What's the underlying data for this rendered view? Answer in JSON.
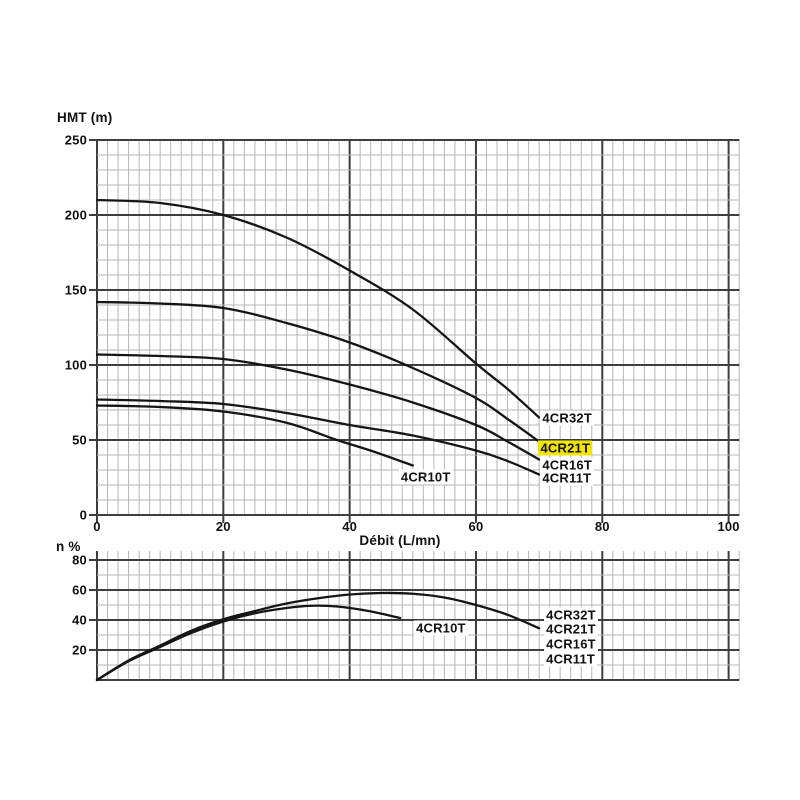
{
  "page": {
    "background": "#ffffff"
  },
  "colors": {
    "grid_minor": "#b7b7b7",
    "grid_major": "#3e3e3e",
    "curve": "#151515",
    "text": "#111111",
    "highlight": "#f2e600",
    "label_background": "#ffffff"
  },
  "chart_data": [
    {
      "id": "head-flow-chart",
      "type": "line",
      "title": "",
      "xlabel": "Débit (L/mn)",
      "ylabel": "HMT (m)",
      "xlim": [
        0,
        100
      ],
      "ylim": [
        0,
        250
      ],
      "x_ticks": [
        0,
        20,
        40,
        60,
        80,
        100
      ],
      "y_ticks": [
        0,
        50,
        100,
        150,
        200,
        250
      ],
      "grid": "minor+major",
      "legend_position": "inline-labels",
      "series": [
        {
          "name": "4CR32T",
          "points": [
            [
              0,
              210
            ],
            [
              10,
              208
            ],
            [
              20,
              200
            ],
            [
              30,
              185
            ],
            [
              40,
              163
            ],
            [
              50,
              137
            ],
            [
              60,
              101
            ],
            [
              65,
              84
            ],
            [
              70,
              65
            ]
          ]
        },
        {
          "name": "4CR21T",
          "points": [
            [
              0,
              142
            ],
            [
              10,
              141
            ],
            [
              20,
              138
            ],
            [
              30,
              128
            ],
            [
              40,
              115
            ],
            [
              50,
              98
            ],
            [
              60,
              78
            ],
            [
              65,
              64
            ],
            [
              70,
              49
            ]
          ]
        },
        {
          "name": "4CR16T",
          "points": [
            [
              0,
              107
            ],
            [
              10,
              106
            ],
            [
              20,
              104
            ],
            [
              30,
              97
            ],
            [
              40,
              87
            ],
            [
              50,
              75
            ],
            [
              60,
              60
            ],
            [
              65,
              49
            ],
            [
              70,
              37
            ]
          ]
        },
        {
          "name": "4CR11T",
          "points": [
            [
              0,
              77
            ],
            [
              10,
              76
            ],
            [
              20,
              74
            ],
            [
              30,
              68
            ],
            [
              40,
              60
            ],
            [
              50,
              53
            ],
            [
              60,
              43
            ],
            [
              65,
              36
            ],
            [
              70,
              27
            ]
          ]
        },
        {
          "name": "4CR10T",
          "points": [
            [
              0,
              73
            ],
            [
              10,
              72
            ],
            [
              20,
              69
            ],
            [
              30,
              61.5
            ],
            [
              38,
              50
            ],
            [
              44,
              42
            ],
            [
              50,
              33
            ]
          ]
        }
      ],
      "annotations": [
        {
          "label": "4CR32T",
          "x": 70.2,
          "y": 64.7,
          "highlight": false
        },
        {
          "label": "4CR21T",
          "x": 69.9,
          "y": 45.0,
          "highlight": true
        },
        {
          "label": "4CR16T",
          "x": 70.2,
          "y": 33.3,
          "highlight": false
        },
        {
          "label": "4CR11T",
          "x": 70.2,
          "y": 24.7,
          "highlight": false
        },
        {
          "label": "4CR10T",
          "x": 47.8,
          "y": 25.5,
          "highlight": false
        }
      ]
    },
    {
      "id": "efficiency-chart",
      "type": "line",
      "title": "",
      "xlabel": "",
      "ylabel": "n %",
      "xlim": [
        0,
        100
      ],
      "ylim": [
        0,
        86
      ],
      "x_ticks": [],
      "y_ticks": [
        20,
        40,
        60,
        80
      ],
      "grid": "minor+major",
      "legend_position": "inline-labels",
      "series": [
        {
          "name": "4CR32T/4CR21T/4CR16T/4CR11T",
          "points": [
            [
              0,
              0
            ],
            [
              5,
              13
            ],
            [
              10,
              23
            ],
            [
              15,
              33
            ],
            [
              20,
              40.5
            ],
            [
              25,
              46
            ],
            [
              30,
              51
            ],
            [
              35,
              54.5
            ],
            [
              40,
              57
            ],
            [
              45,
              58
            ],
            [
              50,
              57.5
            ],
            [
              55,
              55
            ],
            [
              60,
              50
            ],
            [
              65,
              43.5
            ],
            [
              70,
              34.5
            ]
          ]
        },
        {
          "name": "4CR10T",
          "points": [
            [
              0,
              0
            ],
            [
              5,
              12.5
            ],
            [
              10,
              22
            ],
            [
              15,
              31.5
            ],
            [
              20,
              39
            ],
            [
              25,
              44.5
            ],
            [
              30,
              48
            ],
            [
              34,
              49.5
            ],
            [
              38,
              49
            ],
            [
              43,
              46
            ],
            [
              48,
              41.3
            ]
          ]
        }
      ],
      "annotations": [
        {
          "label": "4CR10T",
          "x": 50.2,
          "y": 34.7,
          "highlight": false
        },
        {
          "label": "4CR32T",
          "x": 70.8,
          "y": 43.3,
          "highlight": false
        },
        {
          "label": "4CR21T",
          "x": 70.8,
          "y": 33.7,
          "highlight": false
        },
        {
          "label": "4CR16T",
          "x": 70.8,
          "y": 24.0,
          "highlight": false
        },
        {
          "label": "4CR11T",
          "x": 70.8,
          "y": 14.0,
          "highlight": false
        }
      ]
    }
  ]
}
